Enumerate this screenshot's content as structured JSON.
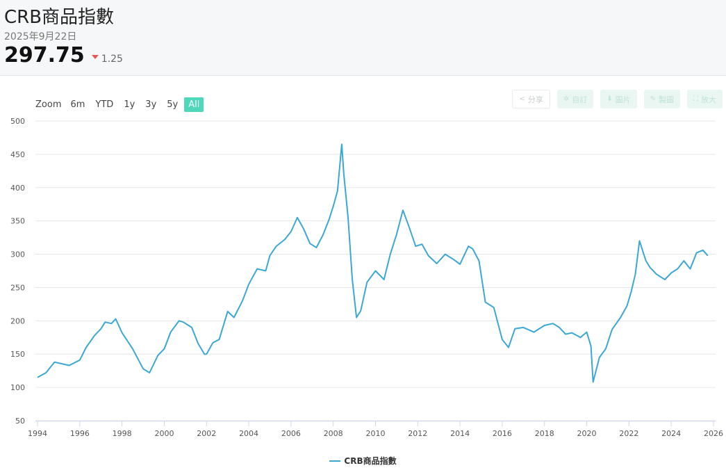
{
  "header": {
    "title": "CRB商品指數",
    "date": "2025年9月22日",
    "price": "297.75",
    "change": "1.25",
    "change_direction": "down",
    "down_color": "#e05a5a"
  },
  "range_selector": {
    "label": "Zoom",
    "options": [
      "6m",
      "YTD",
      "1y",
      "3y",
      "5y",
      "All"
    ],
    "active": "All",
    "active_color": "#4ed8b9"
  },
  "toolbar": {
    "share": {
      "label": "分享",
      "icon": "share-icon"
    },
    "subscribe": {
      "label": "自訂",
      "icon": "gear-icon"
    },
    "image": {
      "label": "圖片",
      "icon": "download-icon"
    },
    "draw": {
      "label": "製圖",
      "icon": "pencil-icon"
    },
    "expand": {
      "label": "放大",
      "icon": "expand-icon"
    }
  },
  "chart_data": {
    "type": "line",
    "title": "",
    "xlabel": "",
    "ylabel": "",
    "xlim": [
      1993.9,
      2026.1
    ],
    "ylim": [
      50,
      500
    ],
    "x_ticks": [
      "1994",
      "1996",
      "1998",
      "2000",
      "2002",
      "2004",
      "2006",
      "2008",
      "2010",
      "2012",
      "2014",
      "2016",
      "2018",
      "2020",
      "2022",
      "2024",
      "2026"
    ],
    "y_ticks": [
      50,
      100,
      150,
      200,
      250,
      300,
      350,
      400,
      450,
      500
    ],
    "grid": "horizontal",
    "legend_position": "bottom-center",
    "series": [
      {
        "name": "CRB商品指數",
        "color": "#3aa7d4",
        "x": [
          1994.0,
          1994.4,
          1994.8,
          1995.5,
          1996.0,
          1996.3,
          1996.7,
          1997.0,
          1997.2,
          1997.5,
          1997.7,
          1998.0,
          1998.5,
          1999.0,
          1999.3,
          1999.7,
          2000.0,
          2000.3,
          2000.7,
          2000.9,
          2001.3,
          2001.6,
          2001.9,
          2002.0,
          2002.3,
          2002.6,
          2003.0,
          2003.3,
          2003.7,
          2004.0,
          2004.4,
          2004.8,
          2005.0,
          2005.3,
          2005.7,
          2006.0,
          2006.3,
          2006.6,
          2006.9,
          2007.2,
          2007.5,
          2007.8,
          2008.0,
          2008.2,
          2008.4,
          2008.5,
          2008.7,
          2008.9,
          2009.1,
          2009.3,
          2009.6,
          2010.0,
          2010.4,
          2010.7,
          2011.0,
          2011.3,
          2011.6,
          2011.9,
          2012.2,
          2012.5,
          2012.9,
          2013.3,
          2013.7,
          2014.0,
          2014.4,
          2014.6,
          2014.9,
          2015.2,
          2015.6,
          2016.0,
          2016.3,
          2016.6,
          2017.0,
          2017.5,
          2018.0,
          2018.4,
          2018.7,
          2019.0,
          2019.3,
          2019.7,
          2020.0,
          2020.2,
          2020.3,
          2020.6,
          2020.9,
          2021.2,
          2021.6,
          2021.9,
          2022.1,
          2022.3,
          2022.5,
          2022.8,
          2023.0,
          2023.3,
          2023.7,
          2024.0,
          2024.3,
          2024.6,
          2024.9,
          2025.2,
          2025.5,
          2025.73
        ],
        "values": [
          115,
          122,
          138,
          133,
          141,
          160,
          178,
          188,
          198,
          196,
          203,
          182,
          158,
          128,
          122,
          148,
          158,
          183,
          200,
          198,
          190,
          166,
          150,
          150,
          167,
          172,
          214,
          205,
          230,
          255,
          278,
          275,
          298,
          312,
          322,
          334,
          355,
          338,
          316,
          310,
          328,
          352,
          372,
          395,
          465,
          420,
          355,
          262,
          205,
          215,
          258,
          275,
          262,
          300,
          330,
          366,
          340,
          312,
          315,
          298,
          286,
          300,
          292,
          285,
          312,
          308,
          290,
          228,
          220,
          172,
          160,
          188,
          190,
          183,
          193,
          196,
          190,
          180,
          182,
          175,
          183,
          162,
          108,
          145,
          158,
          187,
          205,
          222,
          243,
          270,
          320,
          290,
          280,
          270,
          262,
          272,
          278,
          290,
          278,
          302,
          306,
          297.75
        ]
      }
    ]
  }
}
